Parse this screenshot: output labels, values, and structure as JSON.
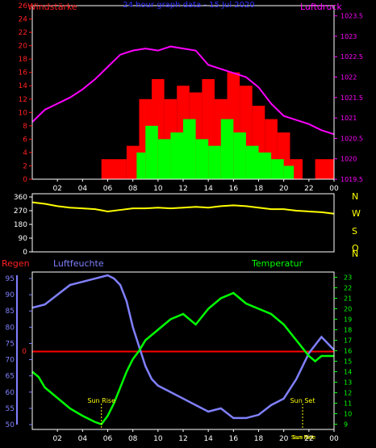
{
  "colors": {
    "background": "#000000",
    "frame": "#ffffff",
    "wind_axis": "#ff2020",
    "pressure_axis": "#ff00ff",
    "gust_bars": "#ff0000",
    "wind_bars": "#00ff00",
    "pressure_line": "#ff00ff",
    "direction_line": "#ffff00",
    "direction_labels": "#ffff00",
    "humidity_line": "#8080ff",
    "temperature_line": "#00ff00",
    "rain_line": "#ff0000",
    "title": "#3030ff",
    "sun_label": "#ffff00",
    "time_labels": "#ffffff"
  },
  "chart_data": [
    {
      "type": "bar",
      "title": "24 hour graph data - 15 Jul 2020",
      "ylabel": "Windstärke",
      "y2label": "Luftdruck",
      "ylim": [
        0,
        26
      ],
      "y2lim": [
        1019.5,
        1023.75
      ],
      "y_ticks": [
        "0",
        "2",
        "4",
        "6",
        "8",
        "10",
        "12",
        "14",
        "16",
        "18",
        "20",
        "22",
        "24",
        "26"
      ],
      "y2_ticks": [
        "1019.5",
        "1020",
        "1020.5",
        "1021",
        "1021.5",
        "1022",
        "1022.5",
        "1023",
        "1023.5"
      ],
      "x_ticks": [
        "02",
        "04",
        "06",
        "08",
        "10",
        "12",
        "14",
        "16",
        "18",
        "20",
        "22",
        "00"
      ],
      "xlim": [
        0,
        24
      ],
      "gust_series": [
        {
          "x": [
            0,
            5.5
          ],
          "v": 0
        },
        {
          "x": [
            5.5,
            7.5
          ],
          "v": 3
        },
        {
          "x": [
            7.5,
            8.5
          ],
          "v": 5
        },
        {
          "x": [
            8.5,
            9.5
          ],
          "v": 12
        },
        {
          "x": [
            9.5,
            10.5
          ],
          "v": 15
        },
        {
          "x": [
            10.5,
            11.5
          ],
          "v": 12
        },
        {
          "x": [
            11.5,
            12.5
          ],
          "v": 14
        },
        {
          "x": [
            12.5,
            13.5
          ],
          "v": 13
        },
        {
          "x": [
            13.5,
            14.5
          ],
          "v": 15
        },
        {
          "x": [
            14.5,
            15.5
          ],
          "v": 12
        },
        {
          "x": [
            15.5,
            16.5
          ],
          "v": 16
        },
        {
          "x": [
            16.5,
            17.5
          ],
          "v": 14
        },
        {
          "x": [
            17.5,
            18.5
          ],
          "v": 11
        },
        {
          "x": [
            18.5,
            19.5
          ],
          "v": 9
        },
        {
          "x": [
            19.5,
            20.5
          ],
          "v": 7
        },
        {
          "x": [
            20.5,
            21.5
          ],
          "v": 3
        },
        {
          "x": [
            21.5,
            22.5
          ],
          "v": 0
        },
        {
          "x": [
            22.5,
            24
          ],
          "v": 3
        }
      ],
      "wind_series": [
        {
          "x": [
            0,
            8.3
          ],
          "v": 0
        },
        {
          "x": [
            8.3,
            9.0
          ],
          "v": 4
        },
        {
          "x": [
            9.0,
            10.0
          ],
          "v": 8
        },
        {
          "x": [
            10.0,
            11.0
          ],
          "v": 6
        },
        {
          "x": [
            11.0,
            12.0
          ],
          "v": 7
        },
        {
          "x": [
            12.0,
            13.0
          ],
          "v": 9
        },
        {
          "x": [
            13.0,
            14.0
          ],
          "v": 6
        },
        {
          "x": [
            14.0,
            15.0
          ],
          "v": 5
        },
        {
          "x": [
            15.0,
            16.0
          ],
          "v": 9
        },
        {
          "x": [
            16.0,
            17.0
          ],
          "v": 7
        },
        {
          "x": [
            17.0,
            18.0
          ],
          "v": 5
        },
        {
          "x": [
            18.0,
            19.0
          ],
          "v": 4
        },
        {
          "x": [
            19.0,
            20.0
          ],
          "v": 3
        },
        {
          "x": [
            20.0,
            20.8
          ],
          "v": 2
        },
        {
          "x": [
            20.8,
            24
          ],
          "v": 0
        }
      ],
      "pressure": {
        "x": [
          0,
          1,
          2,
          3,
          4,
          5,
          6,
          7,
          8,
          9,
          10,
          11,
          12,
          13,
          14,
          15,
          16,
          17,
          18,
          19,
          20,
          21,
          22,
          23,
          24
        ],
        "values": [
          1020.9,
          1021.2,
          1021.35,
          1021.5,
          1021.7,
          1021.95,
          1022.25,
          1022.55,
          1022.65,
          1022.7,
          1022.65,
          1022.75,
          1022.7,
          1022.65,
          1022.3,
          1022.2,
          1022.1,
          1022.0,
          1021.75,
          1021.35,
          1021.05,
          1020.95,
          1020.85,
          1020.7,
          1020.6
        ]
      }
    },
    {
      "type": "line",
      "ylim": [
        0,
        360
      ],
      "y_ticks": [
        "0",
        "90",
        "180",
        "270",
        "360"
      ],
      "direction_labels": [
        "N",
        "W",
        "S",
        "O",
        "N"
      ],
      "wind_direction": {
        "x": [
          0,
          1,
          2,
          3,
          4,
          5,
          6,
          7,
          8,
          9,
          10,
          11,
          12,
          13,
          14,
          15,
          16,
          17,
          18,
          19,
          20,
          21,
          22,
          23,
          24
        ],
        "values": [
          325,
          315,
          300,
          290,
          285,
          280,
          265,
          275,
          285,
          285,
          290,
          285,
          290,
          295,
          290,
          300,
          305,
          300,
          290,
          280,
          280,
          270,
          265,
          260,
          250
        ]
      }
    },
    {
      "type": "line",
      "ylabel": "Luftfeuchte",
      "y2label": "Temperatur",
      "left_label": "Regen",
      "ylim": [
        48.5,
        97
      ],
      "y2lim": [
        8.5,
        23.5
      ],
      "y_ticks": [
        "50",
        "55",
        "60",
        "65",
        "70",
        "75",
        "80",
        "85",
        "90",
        "95"
      ],
      "y2_ticks": [
        "9",
        "10",
        "11",
        "12",
        "13",
        "14",
        "15",
        "16",
        "17",
        "18",
        "19",
        "20",
        "21",
        "22",
        "23"
      ],
      "x_ticks": [
        "02",
        "04",
        "06",
        "08",
        "10",
        "12",
        "14",
        "16",
        "18",
        "20",
        "22",
        "00"
      ],
      "rain_value_label": "0",
      "rain_level": 72.5,
      "sunrise": {
        "label": "Sun Rise",
        "x": 5.5
      },
      "sunset": {
        "label": "Sun Set",
        "x": 21.5
      },
      "bottom_tags": [
        "Sun Rise",
        "Sun Set"
      ],
      "humidity": {
        "x": [
          0,
          1,
          2,
          3,
          4,
          5,
          6,
          6.5,
          7,
          7.5,
          8,
          8.5,
          9,
          9.5,
          10,
          11,
          12,
          13,
          14,
          15,
          16,
          17,
          18,
          19,
          20,
          21,
          22,
          23,
          24
        ],
        "values": [
          86,
          87,
          90,
          93,
          94,
          95,
          96,
          95,
          93,
          88,
          80,
          74,
          68,
          64,
          62,
          60,
          58,
          56,
          54,
          55,
          52,
          52,
          53,
          56,
          58,
          64,
          72,
          77,
          73
        ]
      },
      "temperature": {
        "x": [
          0,
          0.5,
          1,
          1.5,
          2,
          3,
          4,
          5,
          5.5,
          6,
          6.5,
          7,
          7.5,
          8,
          8.5,
          9,
          9.5,
          10,
          11,
          12,
          13,
          14,
          15,
          16,
          17,
          18,
          19,
          20,
          21,
          22,
          22.5,
          23,
          24
        ],
        "values": [
          14,
          13.5,
          12.5,
          12,
          11.5,
          10.5,
          9.8,
          9.2,
          9,
          9.8,
          11,
          12.5,
          14,
          15.2,
          16,
          17,
          17.5,
          18,
          19,
          19.5,
          18.5,
          20,
          21,
          21.5,
          20.5,
          20,
          19.5,
          18.5,
          17,
          15.5,
          15,
          15.5,
          15.5
        ]
      }
    }
  ]
}
